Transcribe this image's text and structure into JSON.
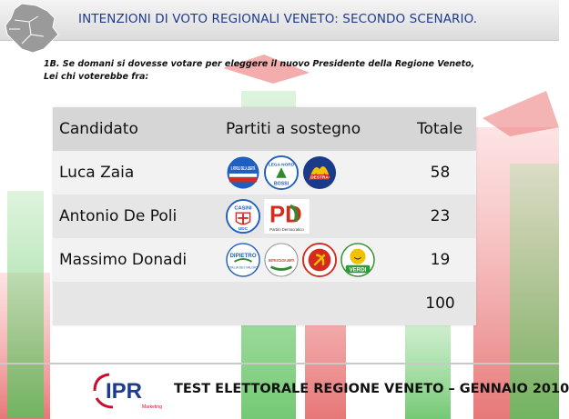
{
  "header": {
    "title": "INTENZIONI DI VOTO REGIONALI VENETO: SECONDO SCENARIO."
  },
  "question": {
    "line1": "1B. Se domani si dovesse votare per eleggere il nuovo Presidente della Regione Veneto,",
    "line2": "Lei chi voterebbe fra:"
  },
  "table": {
    "columns": [
      "Candidato",
      "Partiti a sostegno",
      "Totale"
    ],
    "rows": [
      {
        "candidate": "Luca Zaia",
        "parties": [
          "Il Popolo della Libertà",
          "Lega Nord Bossi",
          "La Destra"
        ],
        "total": "58"
      },
      {
        "candidate": "Antonio De Poli",
        "parties": [
          "UDC Casini",
          "Partito Democratico"
        ],
        "total": "23"
      },
      {
        "candidate": "Massimo Donadi",
        "parties": [
          "Di Pietro Italia dei Valori",
          "Sinistra Ecologia Libertà",
          "Rifondazione Comunista",
          "Verdi"
        ],
        "total": "19"
      },
      {
        "candidate": "",
        "parties": [],
        "total": "100"
      }
    ]
  },
  "logo_text": {
    "pdl": "IL POPOLO DELLA LIBERTÀ",
    "lega": "LEGA NORD",
    "lega_sub": "BOSSI",
    "destra": "DESTRA",
    "udc": "CASINI",
    "udc_sub": "UDC",
    "pd": "PD",
    "pd_sub": "Partito Democratico",
    "idv": "DIPIETRO",
    "idv_sub": "ITALIA DEI VALORI",
    "sel": "SINISTRA ECOLOGIA LIBERTÀ",
    "verdi": "VERDI"
  },
  "footer": {
    "brand": "IPR",
    "brand_sub": "Marketing",
    "title": "TEST ELETTORALE REGIONE VENETO – GENNAIO 2010"
  },
  "colors": {
    "title_blue": "#1f3b8f",
    "ipr_red": "#c8102e",
    "ipr_blue": "#1f3b8f",
    "bg_green": "#8fd48f",
    "bg_red": "#f08a8a",
    "header_gray": "#dcdcdc"
  }
}
